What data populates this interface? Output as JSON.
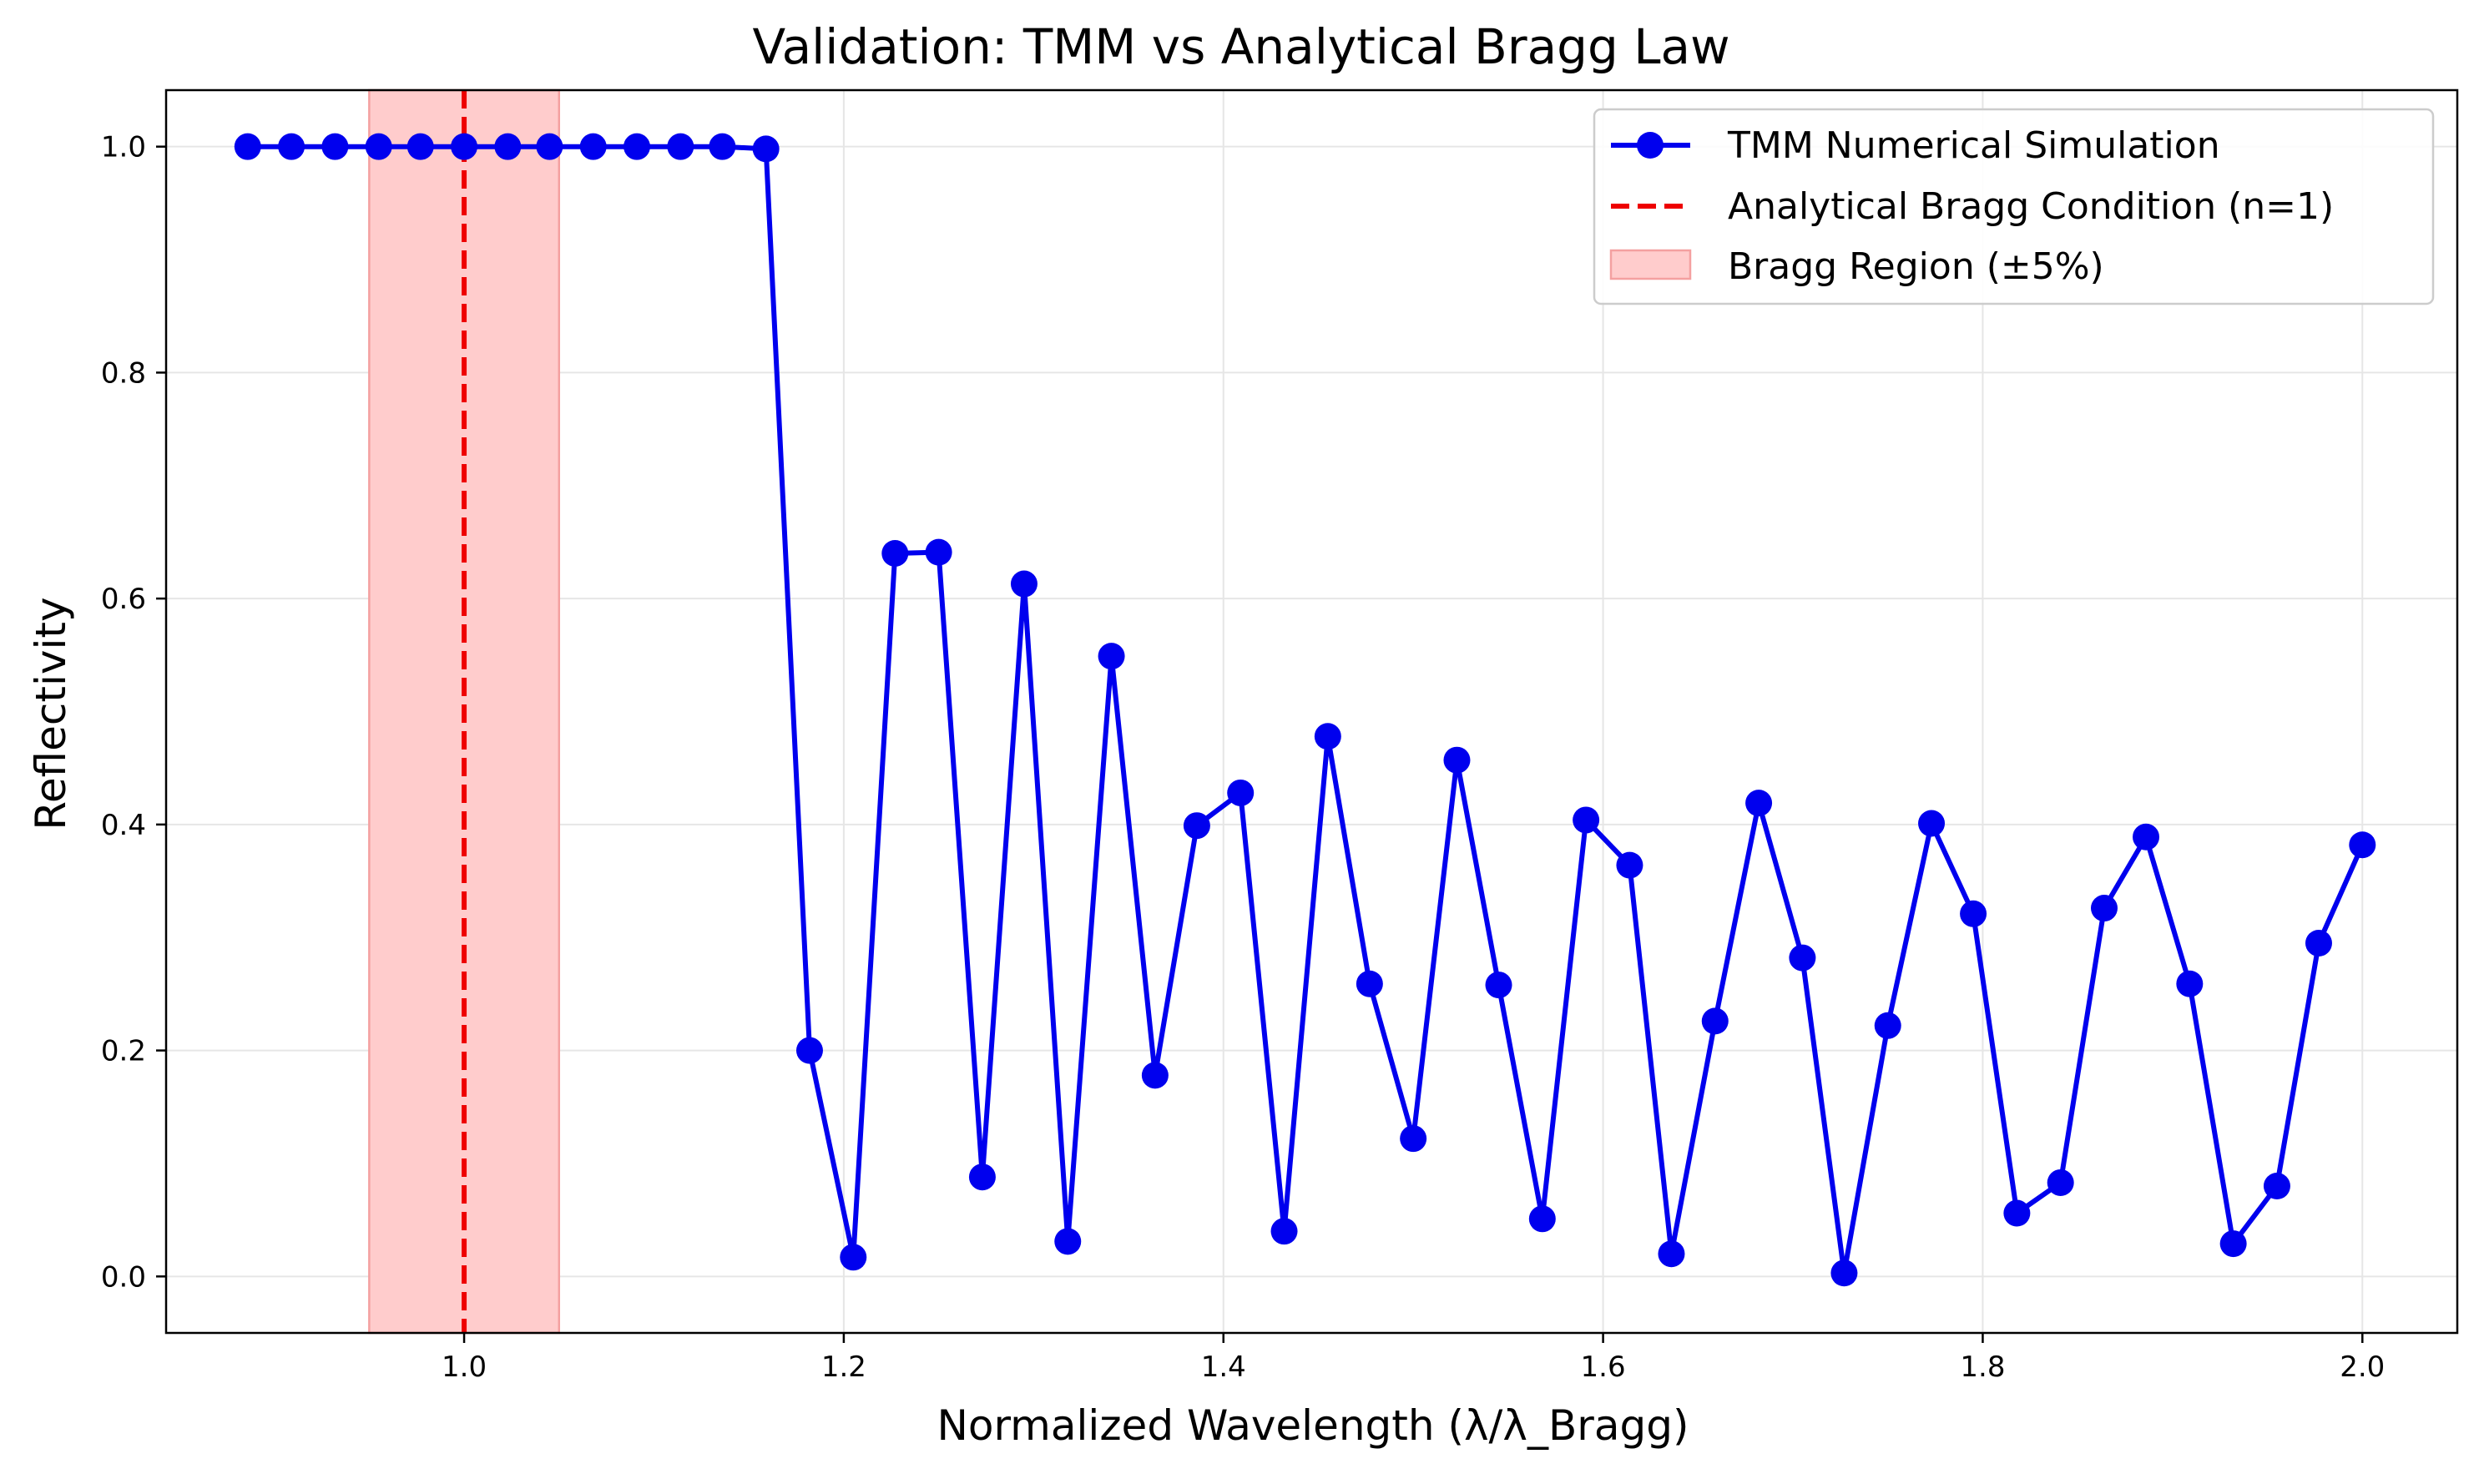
{
  "colors": {
    "series": "#0000ee",
    "bragg_line": "#ee0000",
    "bragg_region_fill": "#ffcccc",
    "bragg_region_edge": "#f4a0a0",
    "grid": "#e6e6e6",
    "axes": "#000000"
  },
  "chart_data": {
    "type": "line",
    "title": "Validation: TMM vs Analytical Bragg Law",
    "xlabel": "Normalized Wavelength (λ/λ_Bragg)",
    "ylabel": "Reflectivity",
    "xlim": [
      0.843,
      2.05
    ],
    "ylim": [
      -0.05,
      1.05
    ],
    "xticks": [
      1.0,
      1.2,
      1.4,
      1.6,
      1.8,
      2.0
    ],
    "xtick_labels": [
      "1.0",
      "1.2",
      "1.4",
      "1.6",
      "1.8",
      "2.0"
    ],
    "yticks": [
      0.0,
      0.2,
      0.4,
      0.6,
      0.8,
      1.0
    ],
    "ytick_labels": [
      "0.0",
      "0.2",
      "0.4",
      "0.6",
      "0.8",
      "1.0"
    ],
    "grid": true,
    "legend_position": "top-right",
    "series": [
      {
        "name": "TMM Numerical Simulation",
        "style": "solid line with circle markers",
        "x": [
          0.886,
          0.909,
          0.932,
          0.955,
          0.977,
          1.0,
          1.023,
          1.045,
          1.068,
          1.091,
          1.114,
          1.136,
          1.159,
          1.182,
          1.205,
          1.227,
          1.25,
          1.273,
          1.295,
          1.318,
          1.341,
          1.364,
          1.386,
          1.409,
          1.432,
          1.455,
          1.477,
          1.5,
          1.523,
          1.545,
          1.568,
          1.591,
          1.614,
          1.636,
          1.659,
          1.682,
          1.705,
          1.727,
          1.75,
          1.773,
          1.795,
          1.818,
          1.841,
          1.864,
          1.886,
          1.909,
          1.932,
          1.955,
          1.977,
          2.0
        ],
        "y": [
          1.0,
          1.0,
          1.0,
          1.0,
          1.0,
          1.0,
          1.0,
          1.0,
          1.0,
          1.0,
          1.0,
          1.0,
          0.998,
          0.2,
          0.017,
          0.64,
          0.641,
          0.088,
          0.613,
          0.031,
          0.549,
          0.178,
          0.399,
          0.428,
          0.04,
          0.478,
          0.259,
          0.122,
          0.457,
          0.258,
          0.051,
          0.404,
          0.364,
          0.02,
          0.226,
          0.419,
          0.282,
          0.003,
          0.222,
          0.401,
          0.321,
          0.056,
          0.083,
          0.326,
          0.389,
          0.259,
          0.029,
          0.08,
          0.295,
          0.382
        ]
      }
    ],
    "reference_line": {
      "name": "Analytical Bragg Condition (n=1)",
      "style": "dashed vertical line",
      "x": 1.0
    },
    "shaded_region": {
      "name": "Bragg Region (±5%)",
      "x_range": [
        0.95,
        1.05
      ]
    }
  }
}
